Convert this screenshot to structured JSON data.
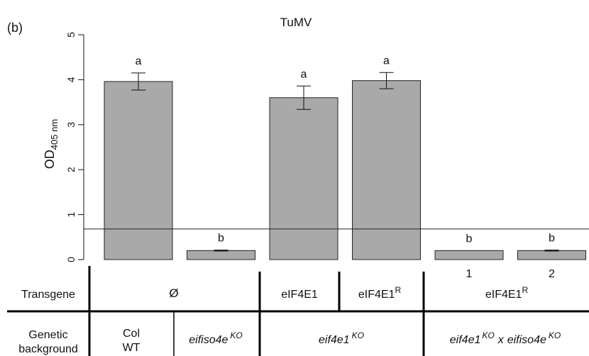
{
  "panel_label": "(b)",
  "chart_data": {
    "type": "bar",
    "title": "TuMV",
    "ylabel": {
      "main": "OD",
      "sub": "405 nm"
    },
    "ylim": [
      0,
      5
    ],
    "yticks": [
      "0",
      "1",
      "2",
      "3",
      "4",
      "5"
    ],
    "threshold": 0.68,
    "bar_color": "#a9a9a9",
    "categories": [
      "",
      "",
      "",
      "",
      "1",
      "2"
    ],
    "values": [
      3.96,
      0.2,
      3.6,
      3.98,
      0.2,
      0.2
    ],
    "error": [
      0.19,
      0.01,
      0.26,
      0.18,
      0.0,
      0.01
    ],
    "letters": [
      "a",
      "b",
      "a",
      "a",
      "b",
      "b"
    ]
  },
  "table": {
    "transgene_label": "Transgene",
    "background_label_1": "Genetic",
    "background_label_2": "background",
    "transgene_empty": "Ø",
    "transgene_eif4e1": "eIF4E1",
    "transgene_eif4e1r_base": "eIF4E1",
    "transgene_r_sup": "R",
    "col_1": "Col",
    "col_2": "WT",
    "eifiso4e": "eifiso4e",
    "ko_sup": "KO",
    "eif4e1": "eif4e1",
    "cross_x": "x",
    "cross_b": "eifiso4e"
  }
}
